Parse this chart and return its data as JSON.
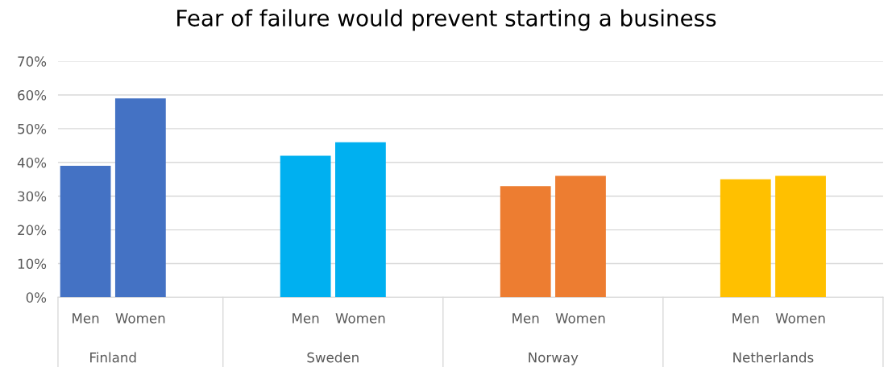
{
  "chart_data": {
    "type": "bar",
    "title": "Fear of failure would prevent starting a business",
    "categories": [
      "Men",
      "Women",
      "Men",
      "Women",
      "Men",
      "Women",
      "Men",
      "Women"
    ],
    "values": [
      0.39,
      0.59,
      0.42,
      0.46,
      0.33,
      0.36,
      0.35,
      0.36
    ],
    "colors": [
      "#4472c4",
      "#4472c4",
      "#00b0f0",
      "#00b0f0",
      "#ed7d31",
      "#ed7d31",
      "#ffc000",
      "#ffc000"
    ],
    "annotations": [
      "Finland",
      "Sweden",
      "Norway",
      "Netherlands"
    ],
    "ylim": [
      0,
      0.7
    ],
    "yticks": [
      {
        "value": 0,
        "label": "0%"
      },
      {
        "value": 0.1,
        "label": "10%"
      },
      {
        "value": 0.2,
        "label": "20%"
      },
      {
        "value": 0.3,
        "label": "30%"
      },
      {
        "value": 0.4,
        "label": "40%"
      },
      {
        "value": 0.5,
        "label": "50%"
      },
      {
        "value": 0.6,
        "label": "60%"
      },
      {
        "value": 0.7,
        "label": "70%"
      }
    ],
    "grid": "y",
    "legend": false
  }
}
